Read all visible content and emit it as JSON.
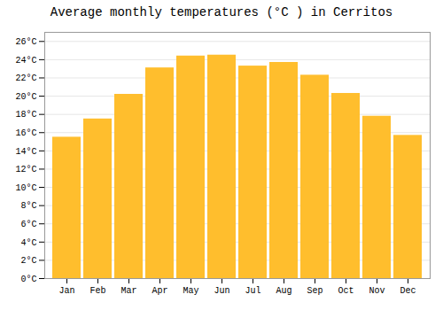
{
  "chart_data": {
    "type": "bar",
    "title": "Average monthly temperatures (°C ) in Cerritos",
    "categories": [
      "Jan",
      "Feb",
      "Mar",
      "Apr",
      "May",
      "Jun",
      "Jul",
      "Aug",
      "Sep",
      "Oct",
      "Nov",
      "Dec"
    ],
    "values": [
      15.5,
      17.5,
      20.2,
      23.1,
      24.4,
      24.5,
      23.3,
      23.7,
      22.3,
      20.3,
      17.8,
      15.7
    ],
    "color": "#FFBE2D",
    "ylim": [
      0,
      27
    ],
    "yticks": [
      {
        "value": 0,
        "label": "0°C"
      },
      {
        "value": 2,
        "label": "2°C"
      },
      {
        "value": 4,
        "label": "4°C"
      },
      {
        "value": 6,
        "label": "6°C"
      },
      {
        "value": 8,
        "label": "8°C"
      },
      {
        "value": 10,
        "label": "10°C"
      },
      {
        "value": 12,
        "label": "12°C"
      },
      {
        "value": 14,
        "label": "14°C"
      },
      {
        "value": 16,
        "label": "16°C"
      },
      {
        "value": 18,
        "label": "18°C"
      },
      {
        "value": 20,
        "label": "20°C"
      },
      {
        "value": 22,
        "label": "22°C"
      },
      {
        "value": 24,
        "label": "24°C"
      },
      {
        "value": 26,
        "label": "26°C"
      }
    ],
    "grid": true
  }
}
